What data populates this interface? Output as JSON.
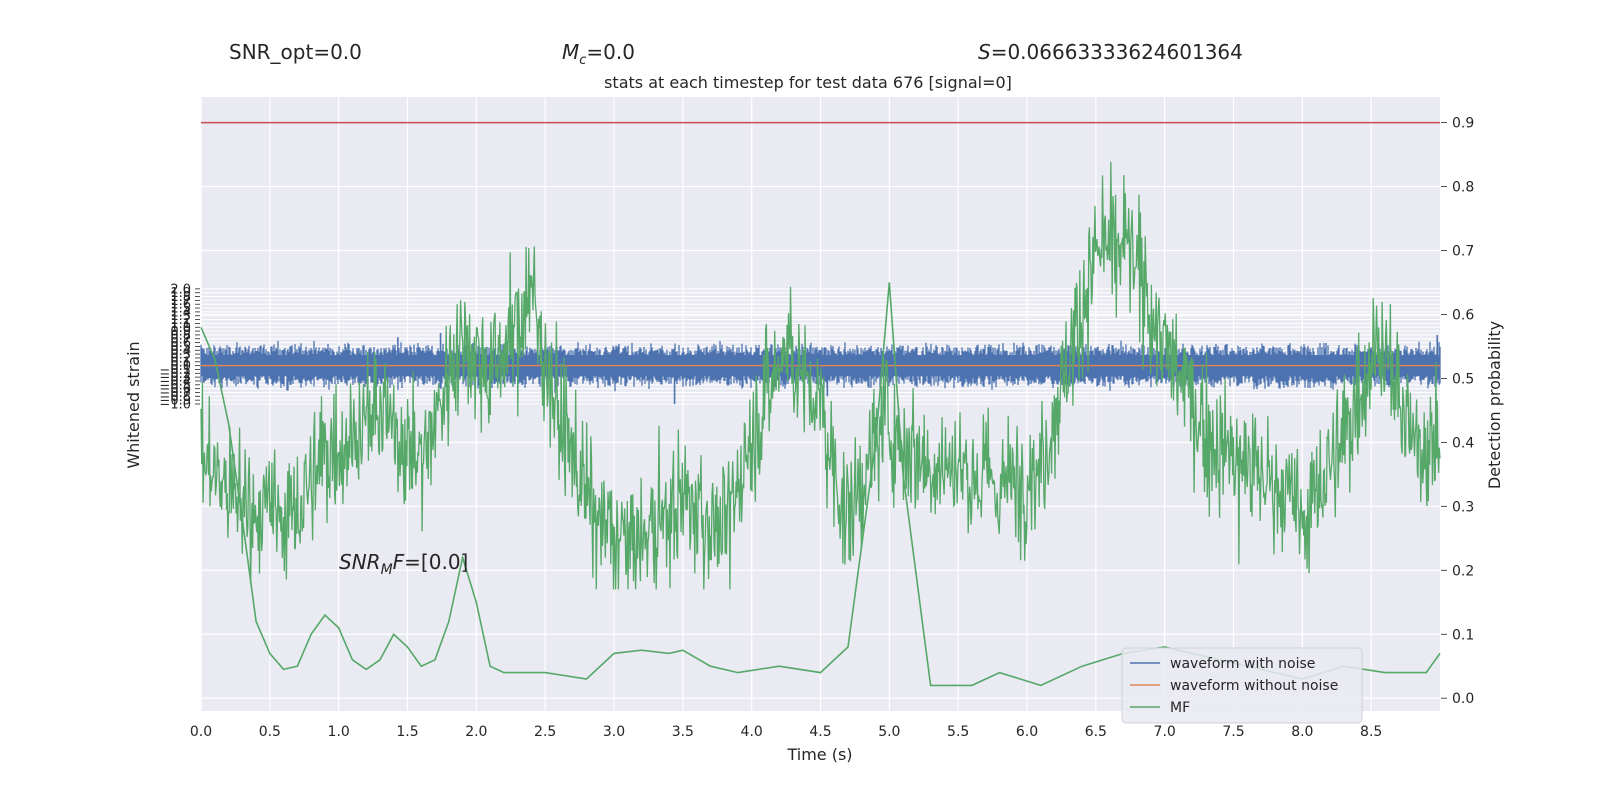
{
  "header": {
    "snr_opt": "SNR_opt=0.0",
    "mc_symbol": "M",
    "mc_sub": "c",
    "mc_value": "=0.0",
    "s_symbol": "S",
    "s_value": "=0.06663333624601364"
  },
  "annotation": {
    "symbol": "SNR",
    "sub": "M",
    "tail": "F",
    "value": "=[0.0]"
  },
  "chart_data": {
    "type": "line",
    "title": "stats at each timestep for test data 676 [signal=0]",
    "xlabel": "Time (s)",
    "ylabel_left": "Whitened strain",
    "ylabel_right": "Detection probability",
    "xlim": [
      0.0,
      9.0
    ],
    "ylim_left": [
      -9.0,
      7.0
    ],
    "ylim_right": [
      -0.02,
      0.94
    ],
    "x_ticks": [
      "0.0",
      "0.5",
      "1.0",
      "1.5",
      "2.0",
      "2.5",
      "3.0",
      "3.5",
      "4.0",
      "4.5",
      "5.0",
      "5.5",
      "6.0",
      "6.5",
      "7.0",
      "7.5",
      "8.0",
      "8.5"
    ],
    "y_left_ticks": [
      "2.0",
      "1.9",
      "1.8",
      "1.7",
      "1.6",
      "1.5",
      "1.4",
      "1.3",
      "1.2",
      "1.1",
      "1.0",
      "0.9",
      "0.8",
      "0.7",
      "0.6",
      "0.5",
      "0.4",
      "0.3",
      "0.2",
      "0.1",
      "0.0",
      "−0.1",
      "−0.2",
      "−0.3",
      "−0.4",
      "−0.5",
      "−0.6",
      "−0.7",
      "−0.8",
      "−0.9",
      "−1.0"
    ],
    "y_right_ticks": [
      "0.9",
      "0.8",
      "0.7",
      "0.6",
      "0.5",
      "0.4",
      "0.3",
      "0.2",
      "0.1",
      "0.0"
    ],
    "threshold": 0.9,
    "colors": {
      "noise": "#4c72b0",
      "clean": "#dd8452",
      "mf": "#55a868",
      "prob": "#55a868",
      "threshold": "#c44e52",
      "background": "#eaeaf2",
      "grid": "#ffffff"
    },
    "noise_envelope": {
      "typical_range": [
        -0.5,
        0.5
      ],
      "max_spikes": [
        [
          1.74,
          0.85
        ],
        [
          6.91,
          0.75
        ],
        [
          1.43,
          0.74
        ],
        [
          4.55,
          -0.8
        ],
        [
          3.44,
          -1.0
        ],
        [
          8.98,
          0.8
        ]
      ]
    },
    "waveform_without_noise": {
      "value": 0.0
    },
    "mf_series": {
      "x": [
        0.0,
        0.1,
        0.2,
        0.3,
        0.4,
        0.5,
        0.6,
        0.7,
        0.8,
        0.9,
        1.0,
        1.1,
        1.2,
        1.3,
        1.4,
        1.5,
        1.6,
        1.7,
        1.8,
        1.9,
        2.0,
        2.1,
        2.2,
        2.5,
        2.8,
        3.0,
        3.2,
        3.4,
        3.5,
        3.7,
        3.9,
        4.2,
        4.5,
        4.7,
        4.9,
        5.0,
        5.1,
        5.3,
        5.6,
        5.8,
        6.1,
        6.4,
        6.7,
        7.0,
        7.4,
        7.7,
        8.0,
        8.3,
        8.6,
        8.9,
        9.0
      ],
      "y": [
        0.58,
        0.53,
        0.43,
        0.28,
        0.12,
        0.07,
        0.045,
        0.05,
        0.1,
        0.13,
        0.11,
        0.06,
        0.045,
        0.06,
        0.1,
        0.08,
        0.05,
        0.06,
        0.12,
        0.22,
        0.15,
        0.05,
        0.04,
        0.04,
        0.03,
        0.07,
        0.075,
        0.07,
        0.075,
        0.05,
        0.04,
        0.05,
        0.04,
        0.08,
        0.4,
        0.65,
        0.35,
        0.02,
        0.02,
        0.04,
        0.02,
        0.05,
        0.07,
        0.08,
        0.06,
        0.045,
        0.03,
        0.05,
        0.04,
        0.04,
        0.07
      ]
    },
    "probability_series": {
      "x": [
        0.0,
        0.2,
        0.4,
        0.7,
        0.9,
        1.3,
        1.6,
        1.9,
        2.1,
        2.4,
        2.6,
        2.9,
        3.2,
        3.5,
        3.8,
        4.0,
        4.25,
        4.5,
        4.7,
        4.95,
        5.2,
        5.5,
        5.8,
        6.1,
        6.5,
        6.75,
        7.0,
        7.3,
        7.6,
        7.8,
        8.0,
        8.3,
        8.55,
        8.8,
        9.0
      ],
      "y": [
        0.38,
        0.32,
        0.29,
        0.29,
        0.38,
        0.45,
        0.37,
        0.57,
        0.51,
        0.63,
        0.44,
        0.26,
        0.24,
        0.31,
        0.26,
        0.41,
        0.55,
        0.45,
        0.27,
        0.44,
        0.38,
        0.36,
        0.33,
        0.36,
        0.7,
        0.7,
        0.55,
        0.41,
        0.36,
        0.34,
        0.28,
        0.4,
        0.57,
        0.4,
        0.4
      ]
    },
    "legend": {
      "position": "lower-right",
      "entries": [
        "waveform with noise",
        "waveform without noise",
        "MF"
      ]
    }
  }
}
